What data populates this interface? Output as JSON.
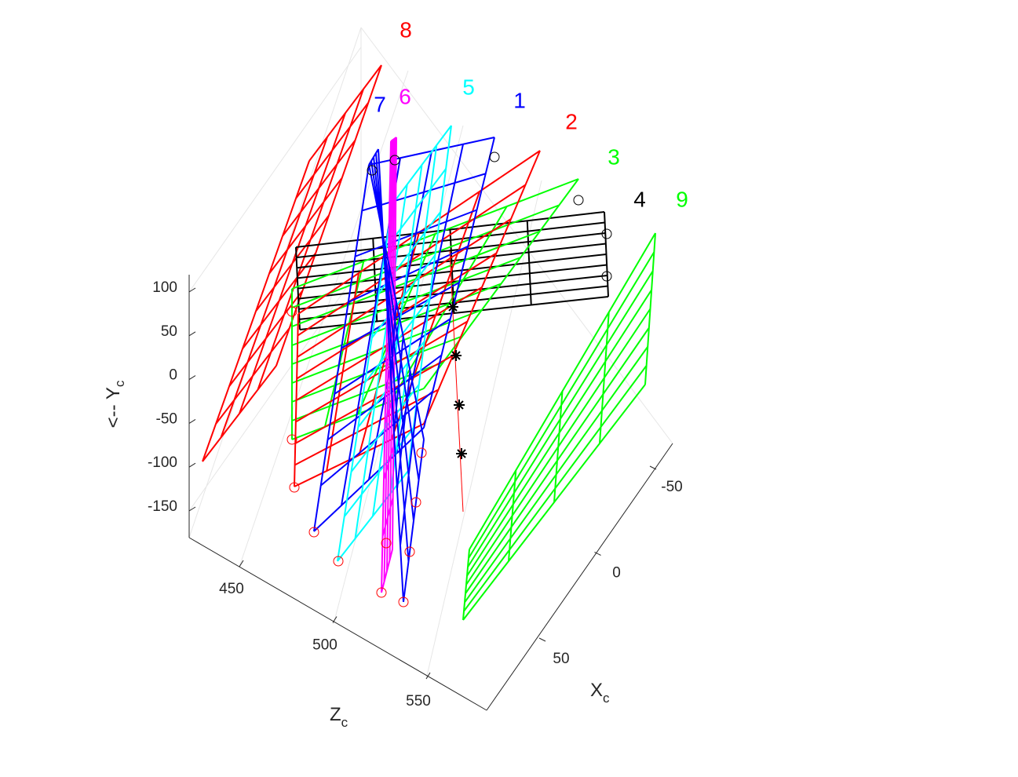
{
  "chart_data": {
    "type": "wireframe3d",
    "xlabel": {
      "text": "X",
      "sub": "c"
    },
    "ylabel": {
      "text": "<-- Y",
      "sub": "c"
    },
    "zlabel": {
      "text": "Z",
      "sub": "c"
    },
    "xticks": [
      -50,
      0,
      50
    ],
    "yticks": [
      100,
      50,
      0,
      -50,
      -100,
      -150
    ],
    "zticks": [
      450,
      500,
      550
    ],
    "grid": true,
    "series": [
      {
        "name": "8",
        "color": "#ff0000"
      },
      {
        "name": "9",
        "color": "#00ff00"
      },
      {
        "name": "4",
        "color": "#000000"
      },
      {
        "name": "3",
        "color": "#00ff00"
      },
      {
        "name": "2",
        "color": "#ff0000"
      },
      {
        "name": "1",
        "color": "#0000ff"
      },
      {
        "name": "5",
        "color": "#00ffff"
      },
      {
        "name": "6",
        "color": "#ff00ff"
      },
      {
        "name": "7",
        "color": "#0000ff"
      }
    ]
  }
}
